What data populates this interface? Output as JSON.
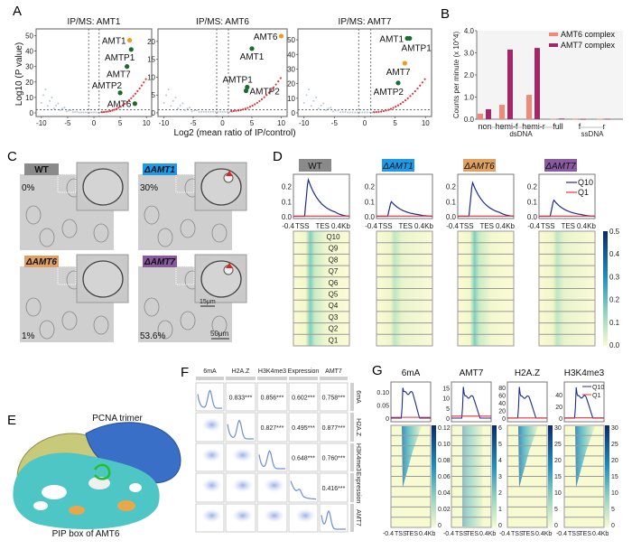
{
  "panels": {
    "A": "A",
    "B": "B",
    "C": "C",
    "D": "D",
    "E": "E",
    "F": "F",
    "G": "G"
  },
  "panelA": {
    "ylabel": "Log10 (P value)",
    "xlabel": "Log2 (mean ratio of IP/control)",
    "xticks": [
      -10,
      -5,
      0,
      5,
      10
    ],
    "colors": {
      "bait": "#f39a1e",
      "partner": "#1a6b2e",
      "enriched": "#e8313a",
      "background": "#b8c8da"
    },
    "plots": [
      {
        "title": "IP/MS: AMT1",
        "ymax": 52,
        "yticks": [
          0,
          10,
          20,
          30,
          40,
          50
        ],
        "points": [
          {
            "label": "AMT1",
            "x": 6.8,
            "y": 47,
            "kind": "bait"
          },
          {
            "label": "AMTP1",
            "x": 7.1,
            "y": 41,
            "kind": "partner"
          },
          {
            "label": "AMT7",
            "x": 6.3,
            "y": 30,
            "kind": "partner"
          },
          {
            "label": "AMTP2",
            "x": 5.0,
            "y": 13,
            "kind": "partner"
          },
          {
            "label": "AMT6",
            "x": 7.8,
            "y": 6,
            "kind": "partner"
          }
        ]
      },
      {
        "title": "IP/MS: AMT6",
        "ymax": 22.5,
        "yticks": [
          0,
          5,
          10,
          15,
          20
        ],
        "points": [
          {
            "label": "AMT6",
            "x": 10.0,
            "y": 21.5,
            "kind": "bait"
          },
          {
            "label": "AMT1",
            "x": 5.0,
            "y": 18,
            "kind": "partner"
          },
          {
            "label": "AMTP1",
            "x": 4.2,
            "y": 7.2,
            "kind": "partner"
          },
          {
            "label": "AMTP2",
            "x": 4.0,
            "y": 6.2,
            "kind": "partner"
          }
        ]
      },
      {
        "title": "IP/MS: AMT7",
        "ymax": 55,
        "yticks": [
          0,
          10,
          20,
          30,
          40,
          50
        ],
        "points": [
          {
            "label": "AMT1",
            "x": 7.0,
            "y": 51,
            "kind": "partner"
          },
          {
            "label": "AMTP1",
            "x": 7.4,
            "y": 51,
            "kind": "partner"
          },
          {
            "label": "AMT7",
            "x": 6.6,
            "y": 34,
            "kind": "bait"
          },
          {
            "label": "AMTP2",
            "x": 5.5,
            "y": 20.5,
            "kind": "partner"
          }
        ]
      }
    ]
  },
  "chart_data": {
    "type": "bar",
    "ylabel": "Counts per minute (x 10^4)",
    "yticks": [
      "0.0",
      "1.0",
      "2.0",
      "3.0",
      "4.0"
    ],
    "ylim": [
      0,
      4
    ],
    "categories": [
      "non",
      "hemi-f",
      "hemi-r",
      "full",
      "f",
      "r"
    ],
    "groups": [
      {
        "label": "dsDNA",
        "members": [
          "non",
          "hemi-f",
          "hemi-r",
          "full"
        ]
      },
      {
        "label": "ssDNA",
        "members": [
          "f",
          "r"
        ]
      }
    ],
    "legend_position": "top-right",
    "series": [
      {
        "name": "AMT6 complex",
        "color": "#ef8a78",
        "values": [
          0.25,
          0.65,
          1.1,
          0.02,
          0.01,
          0.02
        ]
      },
      {
        "name": "AMT7 complex",
        "color": "#a3286a",
        "values": [
          0.45,
          3.15,
          3.22,
          0.03,
          0.01,
          0.02
        ]
      }
    ]
  },
  "panelC": {
    "cells": [
      {
        "tag": "WT",
        "tagColor": "#8a8a8a",
        "percent": "0%"
      },
      {
        "tag": "ΔAMT1",
        "tagColor": "#1e9be8",
        "percent": "30%"
      },
      {
        "tag": "ΔAMT6",
        "tagColor": "#e0a060",
        "percent": "1%"
      },
      {
        "tag": "ΔAMT7",
        "tagColor": "#8a5aa0",
        "percent": "53.6%"
      }
    ],
    "scale_inset": "15μm",
    "scale_main": "50μm"
  },
  "panelD": {
    "strains": [
      {
        "tag": "WT",
        "tagColor": "#8a8a8a",
        "peak": 0.25
      },
      {
        "tag": "ΔAMT1",
        "tagColor": "#1e9be8",
        "peak": 0.1
      },
      {
        "tag": "ΔAMT6",
        "tagColor": "#e0a060",
        "peak": 0.23
      },
      {
        "tag": "ΔAMT7",
        "tagColor": "#8a5aa0",
        "peak": 0.11
      }
    ],
    "yticks": [
      "0.2",
      "0.1",
      "0.0"
    ],
    "xticks": [
      "-0.4",
      "TSS",
      "TES",
      "0.4Kb"
    ],
    "legend": [
      "Q10",
      "Q1"
    ],
    "quantiles": [
      "Q10",
      "Q9",
      "Q8",
      "Q7",
      "Q6",
      "Q5",
      "Q4",
      "Q3",
      "Q2",
      "Q1"
    ],
    "colorbar": [
      "0.5",
      "0.4",
      "0.3",
      "0.2",
      "0.1",
      "0.0"
    ]
  },
  "panelE": {
    "title": "PCNA trimer",
    "caption": "PIP box of AMT6"
  },
  "panelF": {
    "vars": [
      "6mA",
      "H2A.Z",
      "H3K4me3",
      "Expression",
      "AMT7"
    ],
    "correlations": [
      {
        "row": 0,
        "col": 1,
        "value": "0.833***"
      },
      {
        "row": 0,
        "col": 2,
        "value": "0.856***"
      },
      {
        "row": 0,
        "col": 3,
        "value": "0.602***"
      },
      {
        "row": 0,
        "col": 4,
        "value": "0.758***"
      },
      {
        "row": 1,
        "col": 2,
        "value": "0.827***"
      },
      {
        "row": 1,
        "col": 3,
        "value": "0.495***"
      },
      {
        "row": 1,
        "col": 4,
        "value": "0.877***"
      },
      {
        "row": 2,
        "col": 3,
        "value": "0.648***"
      },
      {
        "row": 2,
        "col": 4,
        "value": "0.760***"
      },
      {
        "row": 3,
        "col": 4,
        "value": "0.416***"
      }
    ]
  },
  "panelG": {
    "tracks": [
      {
        "title": "6mA",
        "yticks": [
          "0.10",
          "0.05",
          "0"
        ],
        "ymax": 0.13,
        "peak": 0.115,
        "plateau": 0.095,
        "q1": 0.003,
        "colorbar": [
          "0.12",
          "0.10",
          "0.08",
          "0.06",
          "0.04",
          "0.02",
          "0"
        ]
      },
      {
        "title": "AMT7",
        "yticks": [
          "15",
          "10",
          "5",
          "0"
        ],
        "ymax": 17,
        "peak": 15.5,
        "plateau": 10.5,
        "q1": 1,
        "colorbar": [
          "6",
          "5",
          "4",
          "3",
          "2",
          "1",
          "0"
        ]
      },
      {
        "title": "H2A.Z",
        "yticks": [
          "80",
          "60",
          "40",
          "20",
          "0"
        ],
        "ymax": 90,
        "peak": 82,
        "plateau": 55,
        "q1": 0.5,
        "colorbar": [
          "30",
          "25",
          "20",
          "15",
          "10",
          "5",
          "0"
        ]
      },
      {
        "title": "H3K4me3",
        "yticks": [
          "40",
          "20",
          "0"
        ],
        "ymax": 58,
        "peak": 52,
        "plateau": 36,
        "q1": 0.5,
        "colorbar": [
          "30",
          "25",
          "20",
          "15",
          "10",
          "5",
          "0"
        ]
      }
    ],
    "legend": [
      "Q10",
      "Q1"
    ],
    "xticks": [
      "-0.4",
      "TSS",
      "TES",
      "0.4Kb"
    ]
  }
}
